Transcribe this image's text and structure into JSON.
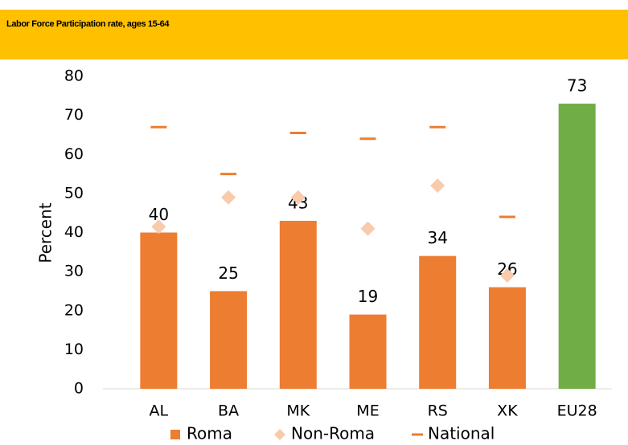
{
  "chart_data": {
    "type": "bar",
    "title": "Labor Force Participation rate, ages 15-64",
    "y_label": "Percent",
    "categories": [
      "AL",
      "BA",
      "MK",
      "ME",
      "RS",
      "XK",
      "EU28"
    ],
    "series": [
      {
        "name": "Roma",
        "kind": "bar",
        "color": "#ed7d31",
        "colors": [
          "#ed7d31",
          "#ed7d31",
          "#ed7d31",
          "#ed7d31",
          "#ed7d31",
          "#ed7d31",
          "#70ad47"
        ],
        "values": [
          40,
          25,
          43,
          19,
          34,
          26,
          73
        ]
      },
      {
        "name": "Non-Roma",
        "kind": "diamond",
        "color": "#f8cbad",
        "values": [
          41.5,
          49,
          49,
          41,
          52,
          29,
          null
        ]
      },
      {
        "name": "National",
        "kind": "dash",
        "color": "#ed7d31",
        "values": [
          67,
          55,
          65.5,
          64,
          67,
          44,
          null
        ]
      }
    ],
    "ylim": [
      0,
      80
    ],
    "yticks": [
      0,
      10,
      20,
      30,
      40,
      50,
      60,
      70,
      80
    ],
    "grid": false,
    "legend": "bottom"
  }
}
